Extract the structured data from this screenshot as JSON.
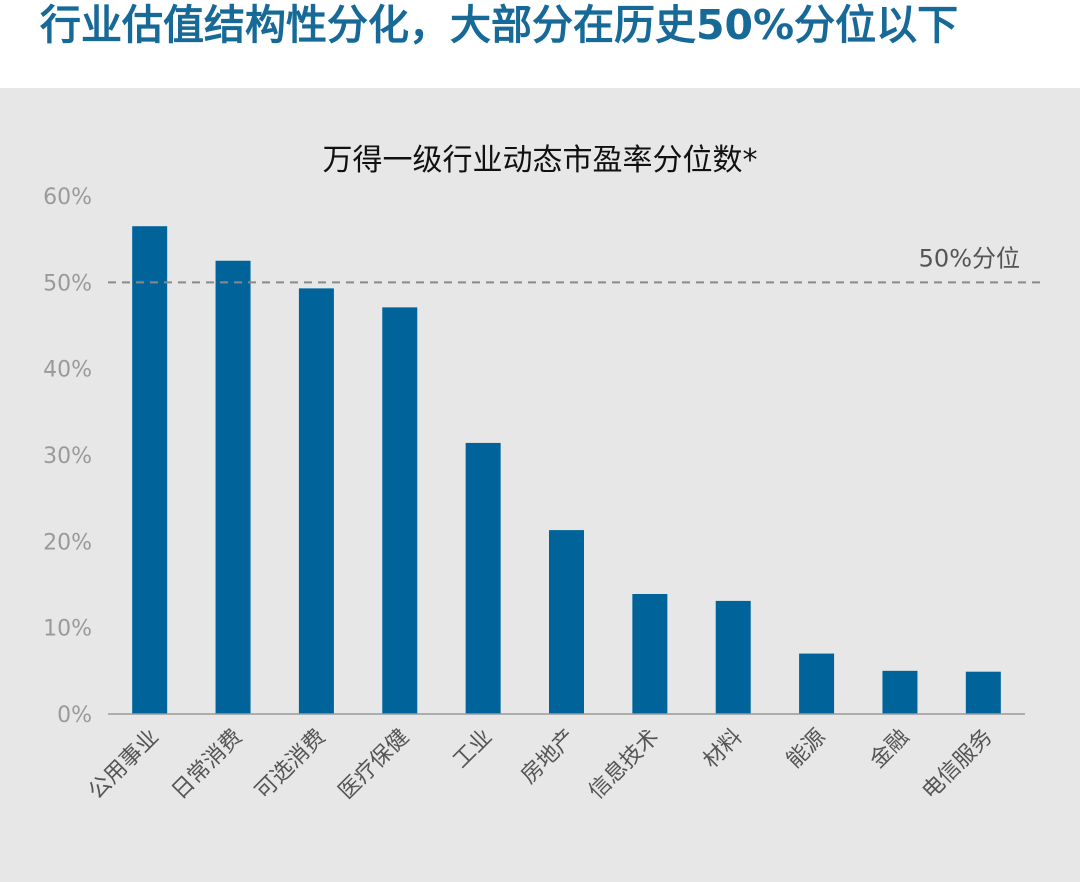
{
  "page": {
    "headline": "行业估值结构性分化，大部分在历史50%分位以下"
  },
  "colors": {
    "headline": "#176a98",
    "bar": "#00649a",
    "panel_bg": "#e7e7e7",
    "reference_line": "#8a8a8a",
    "axis_text": "#9a9a9a",
    "title_text": "#111111"
  },
  "chart_data": {
    "type": "bar",
    "title": "万得一级行业动态市盈率分位数*",
    "categories": [
      "公用事业",
      "日常消费",
      "可选消费",
      "医疗保健",
      "工业",
      "房地产",
      "信息技术",
      "材料",
      "能源",
      "金融",
      "电信服务"
    ],
    "series": [
      {
        "values": [
          56.5,
          52.5,
          49.3,
          47.1,
          31.4,
          21.3,
          13.9,
          13.1,
          7.0,
          5.0,
          4.9
        ]
      }
    ],
    "ylim": [
      0,
      60
    ],
    "yticks": [
      "0%",
      "10%",
      "20%",
      "30%",
      "40%",
      "50%",
      "60%"
    ],
    "ytick_values": [
      0,
      10,
      20,
      30,
      40,
      50,
      60
    ],
    "y_unit": "%",
    "reference_line": {
      "value": 50,
      "label": "50%分位",
      "style": "dashed"
    },
    "grid": false,
    "legend": "none"
  }
}
